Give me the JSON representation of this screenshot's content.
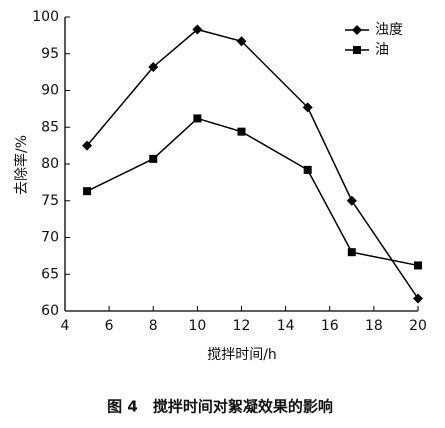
{
  "chart_data": {
    "type": "line",
    "caption": "图 4　搅拌时间对絮凝效果的影响",
    "x_label": "搅拌时间/h",
    "y_label": "去除率/%",
    "x": [
      5,
      8,
      10,
      12,
      15,
      17,
      20
    ],
    "series": [
      {
        "name": "浊度",
        "color": "#000000",
        "marker": "diamond",
        "values": [
          82.5,
          93.2,
          98.3,
          96.7,
          87.7,
          75,
          61.7
        ]
      },
      {
        "name": "油",
        "color": "#000000",
        "marker": "square",
        "values": [
          76.3,
          80.7,
          86.2,
          84.4,
          79.2,
          68,
          66.2
        ]
      }
    ],
    "xlim": [
      4,
      20
    ],
    "xticks": [
      4,
      6,
      8,
      10,
      12,
      14,
      16,
      18,
      20
    ],
    "ylim": [
      60,
      100
    ],
    "yticks": [
      60,
      65,
      70,
      75,
      80,
      85,
      90,
      95,
      100
    ],
    "grid": false,
    "legend": "upper right"
  }
}
